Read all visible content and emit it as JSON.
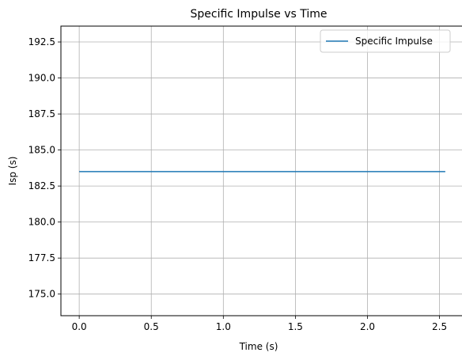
{
  "chart_data": {
    "type": "line",
    "title": "Specific Impulse vs Time",
    "xlabel": "Time (s)",
    "ylabel": "Isp (s)",
    "xlim": [
      -0.127,
      2.667
    ],
    "ylim": [
      173.5,
      193.6
    ],
    "x_ticks": [
      0.0,
      0.5,
      1.0,
      1.5,
      2.0,
      2.5
    ],
    "x_tick_labels": [
      "0.0",
      "0.5",
      "1.0",
      "1.5",
      "2.0",
      "2.5"
    ],
    "y_ticks": [
      175.0,
      177.5,
      180.0,
      182.5,
      185.0,
      187.5,
      190.0,
      192.5
    ],
    "y_tick_labels": [
      "175.0",
      "177.5",
      "180.0",
      "182.5",
      "185.0",
      "187.5",
      "190.0",
      "192.5"
    ],
    "grid": true,
    "legend_position": "top-right",
    "series": [
      {
        "name": "Specific Impulse",
        "color": "#1f77b4",
        "x": [
          0.0,
          2.54
        ],
        "y": [
          183.5,
          183.5
        ]
      }
    ]
  }
}
